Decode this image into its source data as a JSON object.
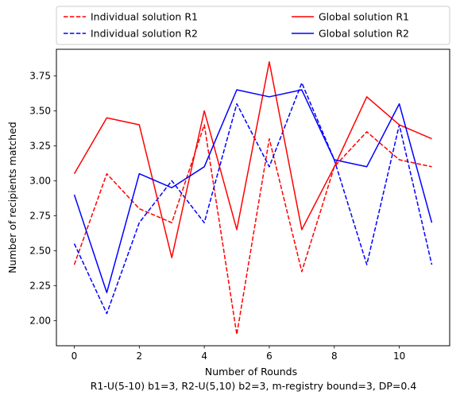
{
  "chart_data": {
    "type": "line",
    "xlabel": "Number of Rounds",
    "caption": "R1-U(5-10) b1=3, R2-U(5,10) b2=3, m-registry bound=3, DP=0.4",
    "ylabel": "Number of recipients matched",
    "x": [
      0,
      1,
      2,
      3,
      4,
      5,
      6,
      7,
      8,
      9,
      10,
      11
    ],
    "xlim": [
      -0.55,
      11.55
    ],
    "ylim": [
      1.82,
      3.94
    ],
    "xticks": [
      0,
      2,
      4,
      6,
      8,
      10
    ],
    "yticks": [
      2.0,
      2.25,
      2.5,
      2.75,
      3.0,
      3.25,
      3.5,
      3.75
    ],
    "ytick_labels": [
      "2.00",
      "2.25",
      "2.50",
      "2.75",
      "3.00",
      "3.25",
      "3.50",
      "3.75"
    ],
    "grid": false,
    "legend_position": "top, outside plot, two columns",
    "series": [
      {
        "name": "Individual solution R1",
        "color": "#ff0000",
        "dashed": true,
        "values": [
          2.4,
          3.05,
          2.8,
          2.7,
          3.4,
          1.9,
          3.3,
          2.35,
          3.1,
          3.35,
          3.15,
          3.1
        ]
      },
      {
        "name": "Individual solution R2",
        "color": "#0000ff",
        "dashed": true,
        "values": [
          2.55,
          2.05,
          2.7,
          3.0,
          2.7,
          3.55,
          3.1,
          3.7,
          3.15,
          2.4,
          3.4,
          2.4
        ]
      },
      {
        "name": "Global solution R1",
        "color": "#ff0000",
        "dashed": false,
        "values": [
          3.05,
          3.45,
          3.4,
          2.45,
          3.5,
          2.65,
          3.85,
          2.65,
          3.1,
          3.6,
          3.4,
          3.3
        ]
      },
      {
        "name": "Global solution R2",
        "color": "#0000ff",
        "dashed": false,
        "values": [
          2.9,
          2.2,
          3.05,
          2.95,
          3.1,
          3.65,
          3.6,
          3.65,
          3.15,
          3.1,
          3.55,
          2.7
        ]
      }
    ]
  }
}
